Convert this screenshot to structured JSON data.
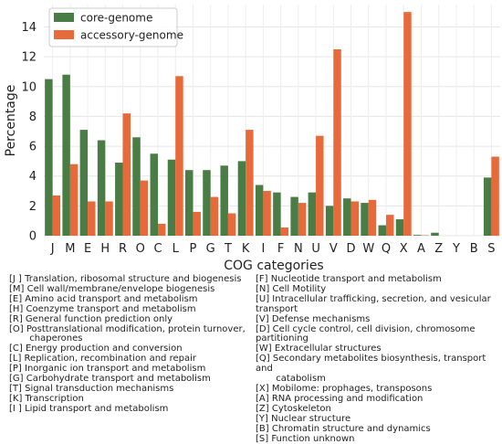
{
  "chart_data": {
    "type": "bar",
    "ylabel": "Percentage",
    "xlabel": "COG categories",
    "ylim": [
      0,
      15.5
    ],
    "yticks": [
      "0",
      "2",
      "4",
      "6",
      "8",
      "10",
      "12",
      "14"
    ],
    "grid": true,
    "legend_position": "top-left",
    "categories": [
      "J",
      "M",
      "E",
      "H",
      "R",
      "O",
      "C",
      "L",
      "P",
      "G",
      "T",
      "K",
      "I",
      "F",
      "N",
      "U",
      "V",
      "D",
      "W",
      "Q",
      "X",
      "A",
      "Z",
      "Y",
      "B",
      "S"
    ],
    "series": [
      {
        "name": "core-genome",
        "color": "#4a7c45",
        "values": [
          10.5,
          10.8,
          7.1,
          6.4,
          4.9,
          6.6,
          5.5,
          5.1,
          4.4,
          4.4,
          4.7,
          5.0,
          3.4,
          2.9,
          2.6,
          2.9,
          2.0,
          2.5,
          2.2,
          0.7,
          1.1,
          0.05,
          0.2,
          0.0,
          0.0,
          3.9
        ]
      },
      {
        "name": "accessory-genome",
        "color": "#e8693a",
        "values": [
          2.7,
          4.8,
          2.3,
          2.3,
          8.2,
          3.7,
          0.8,
          10.7,
          1.6,
          2.6,
          1.5,
          7.1,
          3.0,
          0.55,
          2.2,
          6.7,
          12.5,
          2.3,
          2.4,
          1.4,
          15.0,
          0.03,
          0.0,
          0.0,
          0.0,
          5.3
        ]
      }
    ]
  },
  "legend_text": {
    "left": [
      "[J ] Translation, ribosomal structure and biogenesis",
      "[M] Cell wall/membrane/envelope biogenesis",
      "[E] Amino acid transport and metabolism",
      "[H] Coenzyme transport and metabolism",
      "[R] General function prediction only",
      "[O] Posttranslational modification, protein turnover,\n       chaperones",
      "[C] Energy production and conversion",
      "[L] Replication, recombination and repair",
      "[P] Inorganic ion transport and metabolism",
      "[G] Carbohydrate transport and metabolism",
      "[T] Signal transduction mechanisms",
      "[K] Transcription",
      "[I ] Lipid transport and metabolism"
    ],
    "right": [
      "[F] Nucleotide transport and metabolism",
      "[N] Cell Motility",
      "[U] Intracellular trafficking, secretion, and vesicular transport",
      "[V] Defense mechanisms",
      "[D] Cell cycle control, cell division, chromosome partitioning",
      "[W] Extracellular structures",
      "[Q] Secondary metabolites biosynthesis, transport and\n       catabolism",
      "[X] Mobilome: prophages, transposons",
      "[A] RNA processing and modification",
      "[Z] Cytoskeleton",
      "[Y] Nuclear structure",
      "[B] Chromatin structure and dynamics",
      "[S] Function unknown"
    ]
  }
}
